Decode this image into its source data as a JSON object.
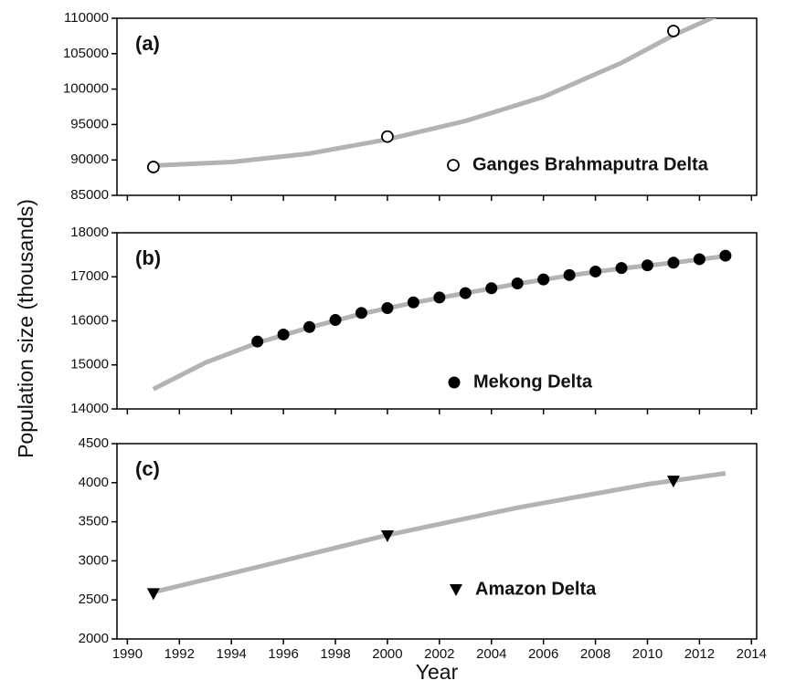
{
  "chart_data": [
    {
      "type": "scatter",
      "panel_label": "(a)",
      "xlim": [
        1989.6,
        2014.2
      ],
      "xticks": [
        1990,
        1992,
        1994,
        1996,
        1998,
        2000,
        2002,
        2004,
        2006,
        2008,
        2010,
        2012,
        2014
      ],
      "xtick_labels": false,
      "ylim": [
        85000,
        110000
      ],
      "yticks": [
        85000,
        90000,
        95000,
        100000,
        105000,
        110000
      ],
      "series": [
        {
          "mode": "line",
          "color": "#b3b3b3",
          "x": [
            1991,
            1994,
            1997,
            2000,
            2003,
            2006,
            2009,
            2011,
            2013
          ],
          "values": [
            89200,
            89700,
            90900,
            92900,
            95500,
            98900,
            103700,
            107600,
            110900
          ]
        },
        {
          "mode": "markers",
          "marker": "circle-open",
          "color": "#000000",
          "name": "Ganges Brahmaputra Delta",
          "x": [
            1991,
            2000,
            2011
          ],
          "values": [
            89000,
            93300,
            108200
          ]
        }
      ]
    },
    {
      "type": "scatter",
      "panel_label": "(b)",
      "xlim": [
        1989.6,
        2014.2
      ],
      "xticks": [
        1990,
        1992,
        1994,
        1996,
        1998,
        2000,
        2002,
        2004,
        2006,
        2008,
        2010,
        2012,
        2014
      ],
      "xtick_labels": false,
      "ylabel": "Population size (thousands)",
      "ylim": [
        14000,
        18000
      ],
      "yticks": [
        14000,
        15000,
        16000,
        17000,
        18000
      ],
      "series": [
        {
          "mode": "line",
          "color": "#b3b3b3",
          "x": [
            1991,
            1993,
            1995,
            1997,
            1999,
            2001,
            2003,
            2005,
            2007,
            2009,
            2011,
            2013
          ],
          "values": [
            14450,
            15050,
            15500,
            15850,
            16160,
            16410,
            16630,
            16840,
            17030,
            17190,
            17320,
            17470
          ]
        },
        {
          "mode": "markers",
          "marker": "circle",
          "color": "#000000",
          "name": "Mekong Delta",
          "x": [
            1995,
            1996,
            1997,
            1998,
            1999,
            2000,
            2001,
            2002,
            2003,
            2004,
            2005,
            2006,
            2007,
            2008,
            2009,
            2010,
            2011,
            2012,
            2013
          ],
          "values": [
            15530,
            15690,
            15860,
            16020,
            16180,
            16290,
            16420,
            16530,
            16630,
            16740,
            16850,
            16940,
            17040,
            17120,
            17200,
            17260,
            17320,
            17400,
            17480
          ]
        }
      ]
    },
    {
      "type": "scatter",
      "panel_label": "(c)",
      "xlim": [
        1989.6,
        2014.2
      ],
      "xticks": [
        1990,
        1992,
        1994,
        1996,
        1998,
        2000,
        2002,
        2004,
        2006,
        2008,
        2010,
        2012,
        2014
      ],
      "xtick_labels": true,
      "xlabel": "Year",
      "ylim": [
        2000,
        4500
      ],
      "yticks": [
        2000,
        2500,
        3000,
        3500,
        4000,
        4500
      ],
      "series": [
        {
          "mode": "line",
          "color": "#b3b3b3",
          "x": [
            1991,
            1995,
            2000,
            2005,
            2010,
            2013
          ],
          "values": [
            2600,
            2920,
            3330,
            3680,
            3980,
            4120
          ]
        },
        {
          "mode": "markers",
          "marker": "triangle-down",
          "color": "#000000",
          "name": "Amazon Delta",
          "x": [
            1991,
            2000,
            2011
          ],
          "values": [
            2580,
            3320,
            4020
          ]
        }
      ]
    }
  ]
}
